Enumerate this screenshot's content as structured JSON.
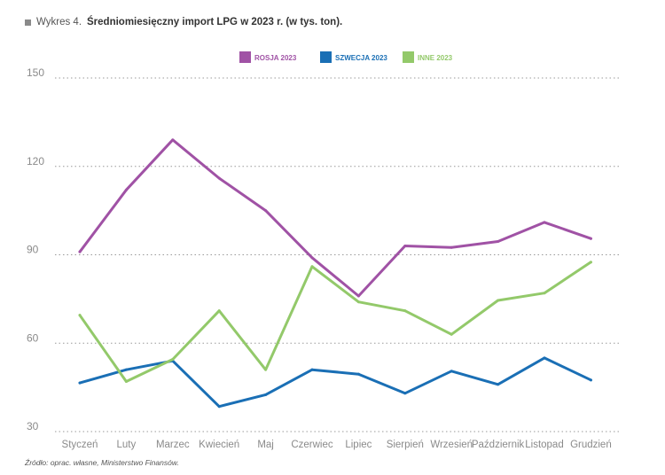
{
  "header": {
    "prefix": "Wykres 4.",
    "title": "Średniomiesięczny import LPG w 2023 r. (w tys. ton)."
  },
  "footer": {
    "source": "Źródło: oprac. własne, Ministerstwo Finansów."
  },
  "chart_data": {
    "type": "line",
    "categories": [
      "Styczeń",
      "Luty",
      "Marzec",
      "Kwiecień",
      "Maj",
      "Czerwiec",
      "Lipiec",
      "Sierpień",
      "Wrzesień",
      "Październik",
      "Listopad",
      "Grudzień"
    ],
    "series": [
      {
        "name": "ROSJA 2023",
        "color": "#a052a5",
        "values": [
          91,
          112,
          129,
          116,
          105,
          89,
          76,
          93,
          92.5,
          94.5,
          101,
          95.5
        ]
      },
      {
        "name": "SZWECJA 2023",
        "color": "#1a6fb5",
        "values": [
          46.5,
          51,
          54,
          38.5,
          42.5,
          51,
          49.5,
          43,
          50.5,
          46,
          55,
          47.5
        ]
      },
      {
        "name": "INNE 2023",
        "color": "#93c96a",
        "values": [
          69.5,
          47,
          54.5,
          71,
          51,
          86,
          74,
          71,
          63,
          74.5,
          77,
          87.5
        ]
      }
    ],
    "yticks": [
      30,
      60,
      90,
      120,
      150
    ],
    "ylim": [
      30,
      150
    ],
    "grid": true,
    "legend_position": "top-center"
  }
}
